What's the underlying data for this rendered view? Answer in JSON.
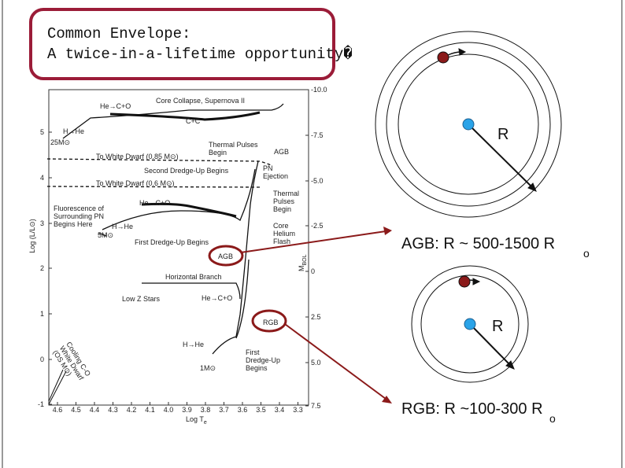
{
  "title": {
    "lines": [
      "Common Envelope:",
      "A twice-in-a-lifetime opportunity�"
    ]
  },
  "hr": {
    "y_title": "Log (L/L⊙)",
    "y2_title": {
      "main": "M",
      "sub": "BOL"
    },
    "x_title": {
      "main": "Log T",
      "sub": "e"
    },
    "yticks": [
      "5",
      "4",
      "3",
      "2",
      "1",
      "0",
      "-1"
    ],
    "y2ticks": [
      "-10.0",
      "-7.5",
      "-5.0",
      "-2.5",
      "0",
      "2.5",
      "5.0",
      "7.5"
    ],
    "xticks": [
      "4.6",
      "4.5",
      "4.4",
      "4.3",
      "4.2",
      "4.1",
      "4.0",
      "3.9",
      "3.8",
      "3.7",
      "3.6",
      "3.5",
      "3.4",
      "3.3"
    ],
    "labels": [
      [
        "He→C+O"
      ],
      [
        "Core Collapse, Supernova II"
      ],
      [
        "C+C"
      ],
      [
        "H→He"
      ],
      [
        "25M⊙"
      ],
      [
        "To White Dwarf (0.85 M⊙)"
      ],
      [
        "Thermal Pulses",
        "Begin"
      ],
      [
        "AGB"
      ],
      [
        "Second Dredge-Up Begins"
      ],
      [
        "PN",
        "Ejection"
      ],
      [
        "To White Dwarf (0.6 M⊙)"
      ],
      [
        "Thermal",
        "Pulses",
        "Begin"
      ],
      [
        "He→C+O"
      ],
      [
        "Fluorescence of",
        "Surrounding PN",
        "Begins Here"
      ],
      [
        "H→He"
      ],
      [
        "5M⊙"
      ],
      [
        "First Dredge-Up Begins"
      ],
      [
        "Core",
        "Helium",
        "Flash"
      ],
      [
        "AGB"
      ],
      [
        "Horizontal Branch"
      ],
      [
        "Low Z Stars"
      ],
      [
        "He→C+O"
      ],
      [
        "RGB"
      ],
      [
        "H→He"
      ],
      [
        "1M⊙"
      ],
      [
        "First",
        "Dredge-Up",
        "Begins"
      ],
      [
        "Cooling C-O",
        "White Dwarf",
        "(OS M⊙)"
      ]
    ]
  },
  "agb": {
    "r": "R",
    "text": "AGB: R ~ 500-1500 R",
    "sub": "o"
  },
  "rgb": {
    "r": "R",
    "text": "RGB: R ~100-300 R",
    "sub": "o"
  }
}
